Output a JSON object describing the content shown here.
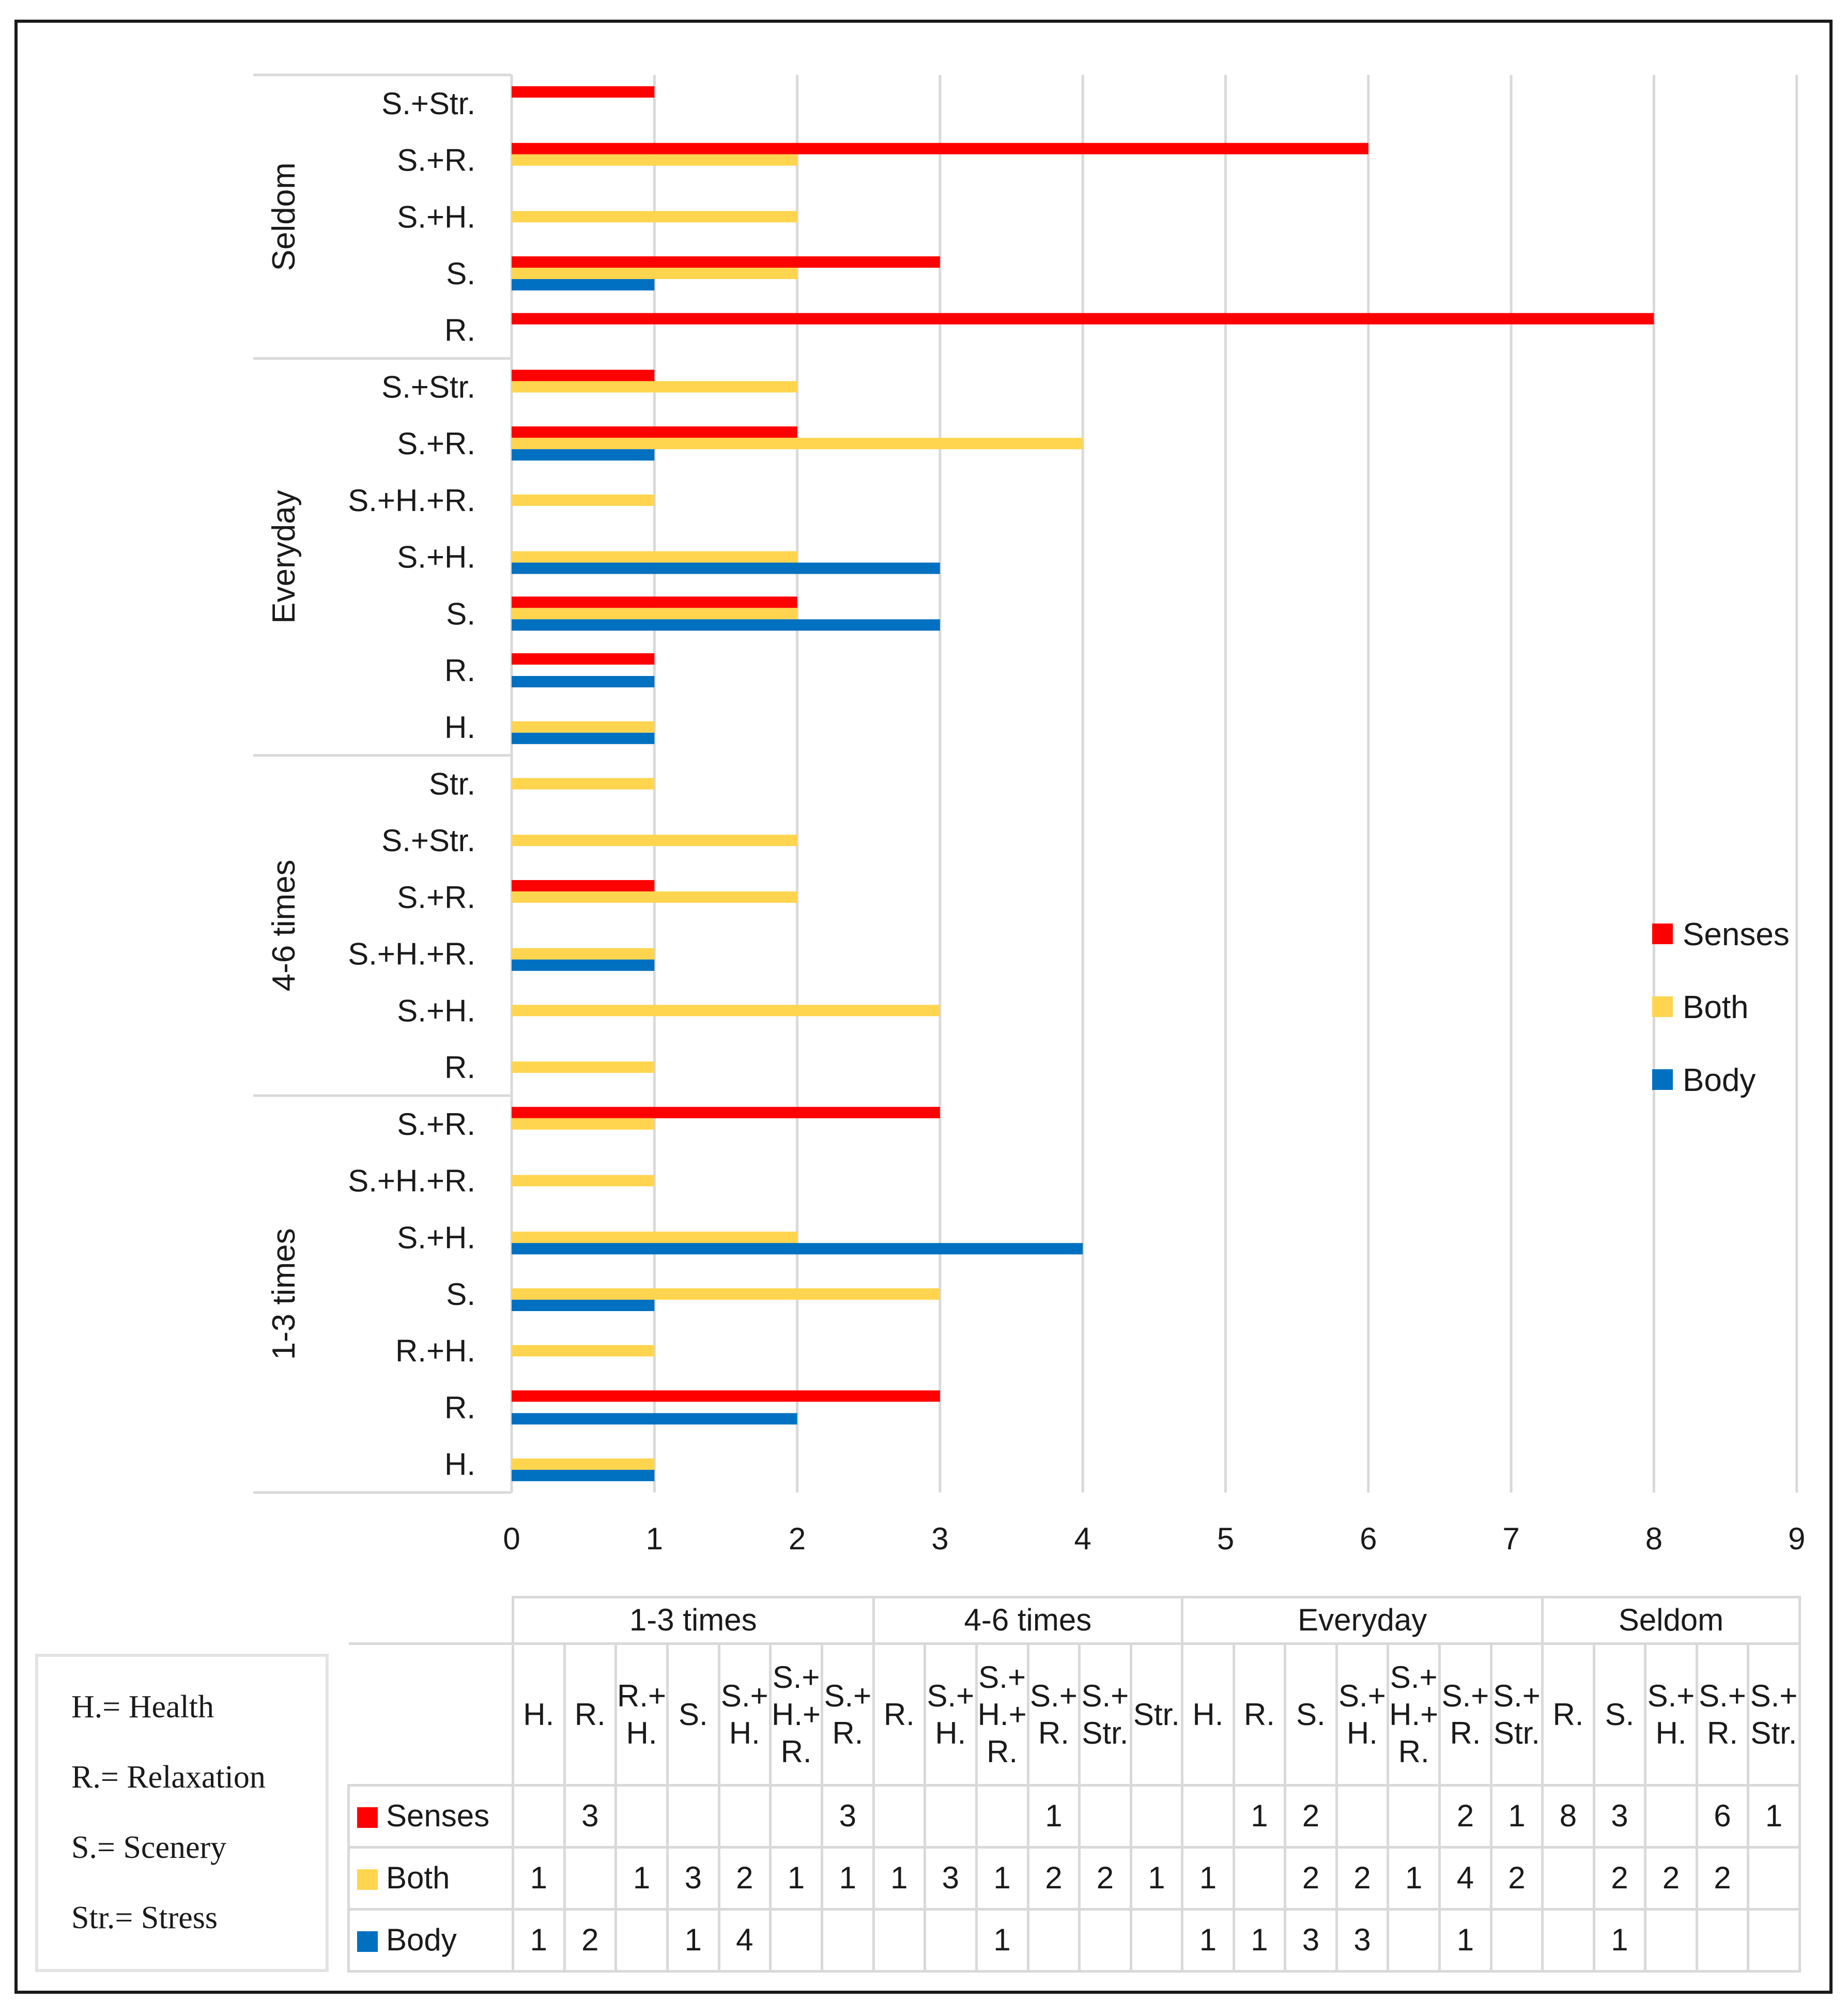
{
  "chart_data": {
    "type": "bar",
    "orientation": "horizontal",
    "xlim": [
      0,
      9
    ],
    "x_ticks": [
      "0",
      "1",
      "2",
      "3",
      "4",
      "5",
      "6",
      "7",
      "8",
      "9"
    ],
    "grid": true,
    "legend_position": "right",
    "series": [
      {
        "name": "Senses",
        "color": "#ff0000"
      },
      {
        "name": "Both",
        "color": "#ffd54f"
      },
      {
        "name": "Body",
        "color": "#0070c0"
      }
    ],
    "groups": [
      {
        "name": "1-3 times",
        "categories": [
          {
            "label": "H.",
            "values": {
              "Senses": null,
              "Both": 1,
              "Body": 1
            },
            "sub_label": "H."
          },
          {
            "label": "R.",
            "values": {
              "Senses": 3,
              "Both": null,
              "Body": 2
            },
            "sub_label": "R."
          },
          {
            "label": "R.+H.",
            "values": {
              "Senses": null,
              "Both": 1,
              "Body": null
            },
            "sub_label": "R.+\nH."
          },
          {
            "label": "S.",
            "values": {
              "Senses": null,
              "Both": 3,
              "Body": 1
            },
            "sub_label": "S."
          },
          {
            "label": "S.+H.",
            "values": {
              "Senses": null,
              "Both": 2,
              "Body": 4
            },
            "sub_label": "S.+\nH."
          },
          {
            "label": "S.+H.+R.",
            "values": {
              "Senses": null,
              "Both": 1,
              "Body": null
            },
            "sub_label": "S.+\nH.+\nR."
          },
          {
            "label": "S.+R.",
            "values": {
              "Senses": 3,
              "Both": 1,
              "Body": null
            },
            "sub_label": "S.+\nR."
          }
        ]
      },
      {
        "name": "4-6 times",
        "categories": [
          {
            "label": "R.",
            "values": {
              "Senses": null,
              "Both": 1,
              "Body": null
            },
            "sub_label": "R."
          },
          {
            "label": "S.+H.",
            "values": {
              "Senses": null,
              "Both": 3,
              "Body": null
            },
            "sub_label": "S.+\nH."
          },
          {
            "label": "S.+H.+R.",
            "values": {
              "Senses": null,
              "Both": 1,
              "Body": 1
            },
            "sub_label": "S.+\nH.+\nR."
          },
          {
            "label": "S.+R.",
            "values": {
              "Senses": 1,
              "Both": 2,
              "Body": null
            },
            "sub_label": "S.+\nR."
          },
          {
            "label": "S.+Str.",
            "values": {
              "Senses": null,
              "Both": 2,
              "Body": null
            },
            "sub_label": "S.+\nStr."
          },
          {
            "label": "Str.",
            "values": {
              "Senses": null,
              "Both": 1,
              "Body": null
            },
            "sub_label": "Str."
          }
        ]
      },
      {
        "name": "Everyday",
        "categories": [
          {
            "label": "H.",
            "values": {
              "Senses": null,
              "Both": 1,
              "Body": 1
            },
            "sub_label": "H."
          },
          {
            "label": "R.",
            "values": {
              "Senses": 1,
              "Both": null,
              "Body": 1
            },
            "sub_label": "R."
          },
          {
            "label": "S.",
            "values": {
              "Senses": 2,
              "Both": 2,
              "Body": 3
            },
            "sub_label": "S."
          },
          {
            "label": "S.+H.",
            "values": {
              "Senses": null,
              "Both": 2,
              "Body": 3
            },
            "sub_label": "S.+\nH."
          },
          {
            "label": "S.+H.+R.",
            "values": {
              "Senses": null,
              "Both": 1,
              "Body": null
            },
            "sub_label": "S.+\nH.+\nR."
          },
          {
            "label": "S.+R.",
            "values": {
              "Senses": 2,
              "Both": 4,
              "Body": 1
            },
            "sub_label": "S.+\nR."
          },
          {
            "label": "S.+Str.",
            "values": {
              "Senses": 1,
              "Both": 2,
              "Body": null
            },
            "sub_label": "S.+\nStr."
          }
        ]
      },
      {
        "name": "Seldom",
        "categories": [
          {
            "label": "R.",
            "values": {
              "Senses": 8,
              "Both": null,
              "Body": null
            },
            "sub_label": "R."
          },
          {
            "label": "S.",
            "values": {
              "Senses": 3,
              "Both": 2,
              "Body": 1
            },
            "sub_label": "S."
          },
          {
            "label": "S.+H.",
            "values": {
              "Senses": null,
              "Both": 2,
              "Body": null
            },
            "sub_label": "S.+\nH."
          },
          {
            "label": "S.+R.",
            "values": {
              "Senses": 6,
              "Both": 2,
              "Body": null
            },
            "sub_label": "S.+\nR."
          },
          {
            "label": "S.+Str.",
            "values": {
              "Senses": 1,
              "Both": null,
              "Body": null
            },
            "sub_label": "S.+\nStr."
          }
        ]
      }
    ]
  },
  "abbreviations": [
    "H.= Health",
    "R.= Relaxation",
    "S.= Scenery",
    "Str.= Stress"
  ]
}
